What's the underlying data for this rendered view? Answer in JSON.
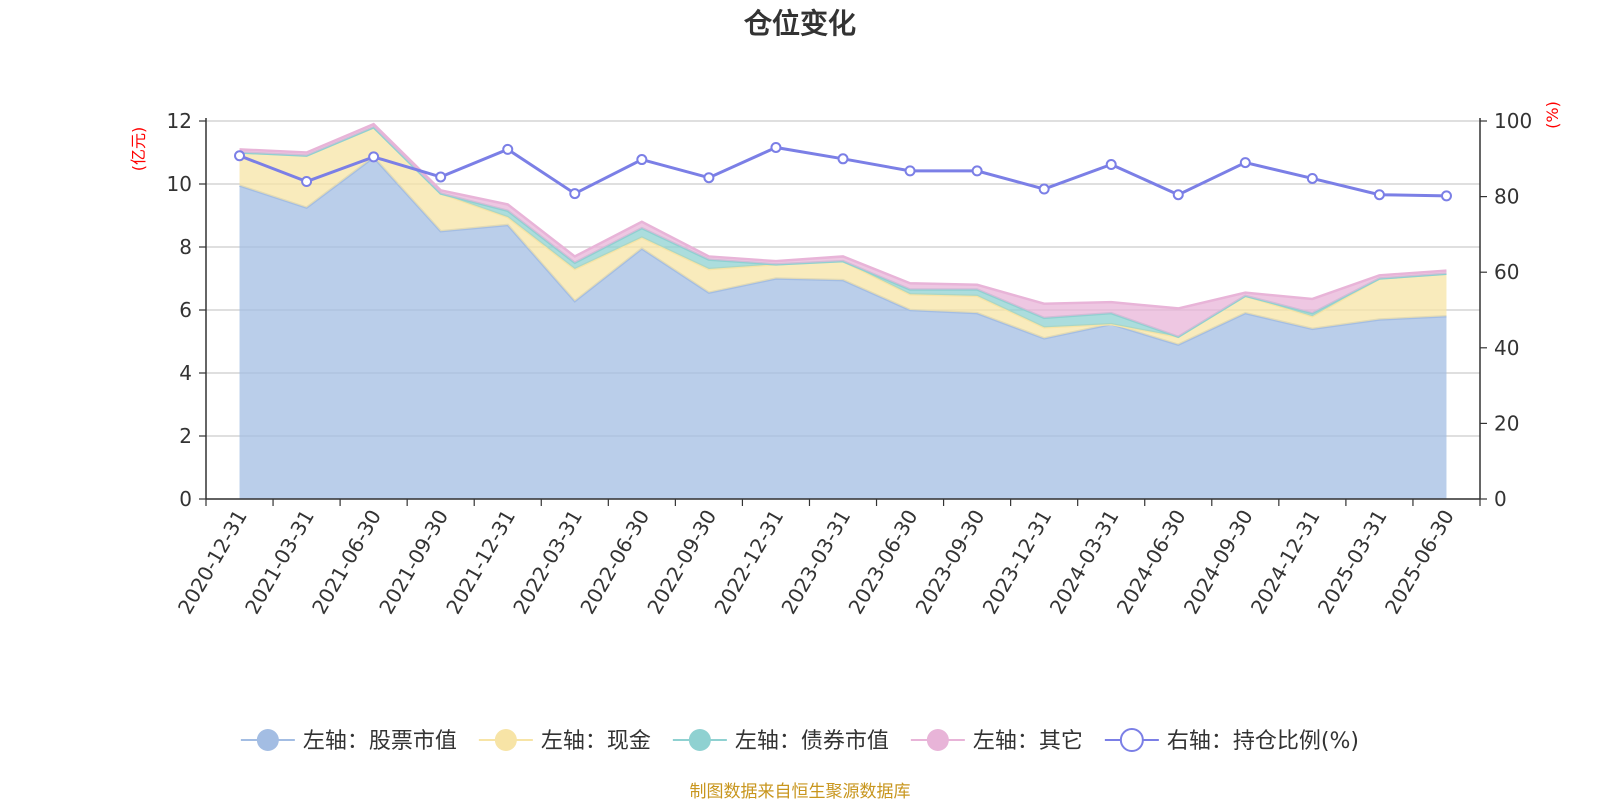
{
  "title": "仓位变化",
  "source_note": "制图数据来自恒生聚源数据库",
  "chart_data": {
    "type": "area",
    "categories": [
      "2020-12-31",
      "2021-03-31",
      "2021-06-30",
      "2021-09-30",
      "2021-12-31",
      "2022-03-31",
      "2022-06-30",
      "2022-09-30",
      "2022-12-31",
      "2023-03-31",
      "2023-06-30",
      "2023-09-30",
      "2023-12-31",
      "2024-03-31",
      "2024-06-30",
      "2024-09-30",
      "2024-12-31",
      "2025-03-31",
      "2025-06-30"
    ],
    "left_axis": {
      "unit": "(亿元)",
      "ylim": [
        0,
        12
      ],
      "ticks": [
        "0",
        "2",
        "4",
        "6",
        "8",
        "10",
        "12"
      ]
    },
    "right_axis": {
      "unit": "(%)",
      "ylim": [
        0,
        100
      ],
      "ticks": [
        "0",
        "20",
        "40",
        "60",
        "80",
        "100"
      ]
    },
    "grid": true,
    "legend_position": "bottom",
    "series": [
      {
        "name": "左轴：股票市值",
        "axis": "left",
        "kind": "stacked-area",
        "color": "#a3bde3",
        "values": [
          9.95,
          9.25,
          10.85,
          8.5,
          8.7,
          6.28,
          7.95,
          6.55,
          7.0,
          6.95,
          6.0,
          5.9,
          5.1,
          5.55,
          4.9,
          5.9,
          5.4,
          5.7,
          5.8
        ]
      },
      {
        "name": "左轴：现金",
        "axis": "left",
        "kind": "stacked-area",
        "color": "#f7e4a6",
        "values": [
          1.05,
          1.65,
          0.95,
          1.2,
          0.25,
          1.02,
          0.35,
          0.75,
          0.45,
          0.6,
          0.5,
          0.55,
          0.35,
          0.0,
          0.25,
          0.55,
          0.4,
          1.3,
          1.35
        ]
      },
      {
        "name": "左轴：债券市值",
        "axis": "left",
        "kind": "stacked-area",
        "color": "#8fd1d1",
        "values": [
          0.0,
          0.0,
          0.0,
          0.0,
          0.2,
          0.2,
          0.3,
          0.3,
          0.0,
          0.0,
          0.15,
          0.2,
          0.3,
          0.35,
          0.0,
          0.0,
          0.1,
          0.0,
          0.0
        ]
      },
      {
        "name": "左轴：其它",
        "axis": "left",
        "kind": "stacked-area",
        "color": "#e8b4d8",
        "values": [
          0.1,
          0.1,
          0.1,
          0.1,
          0.2,
          0.2,
          0.2,
          0.1,
          0.1,
          0.15,
          0.2,
          0.15,
          0.45,
          0.35,
          0.9,
          0.1,
          0.45,
          0.1,
          0.1
        ]
      },
      {
        "name": "右轴：持仓比例(%)",
        "axis": "right",
        "kind": "line",
        "color": "#7b7fe6",
        "values": [
          90.8,
          84.0,
          90.5,
          85.2,
          92.5,
          80.8,
          89.8,
          85.0,
          93.0,
          90.0,
          86.8,
          86.8,
          82.0,
          88.5,
          80.5,
          89.0,
          84.8,
          80.5,
          80.2
        ]
      }
    ]
  }
}
